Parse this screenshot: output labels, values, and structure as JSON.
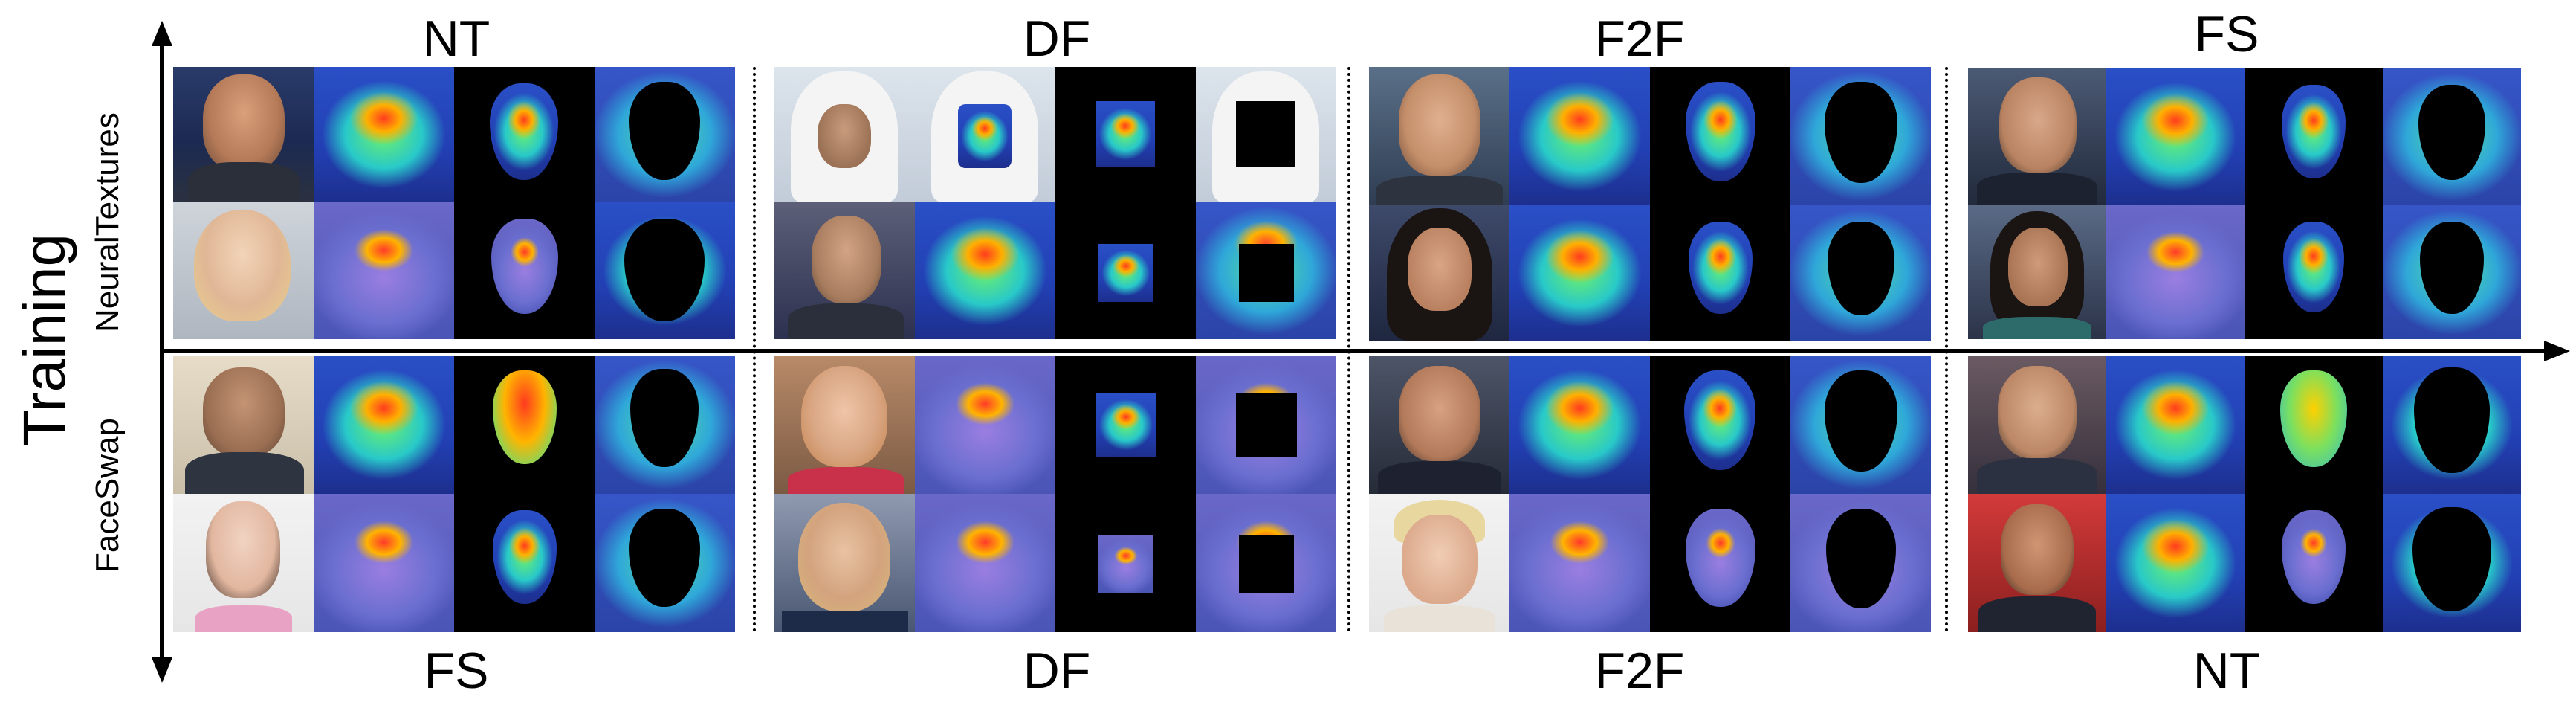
{
  "top_labels": [
    "NT",
    "DF",
    "F2F",
    "FS"
  ],
  "bottom_labels": [
    "FS",
    "DF",
    "F2F",
    "NT"
  ],
  "y_axis_label": "Training",
  "row_labels": [
    "NeuralTextures",
    "FaceSwap"
  ]
}
